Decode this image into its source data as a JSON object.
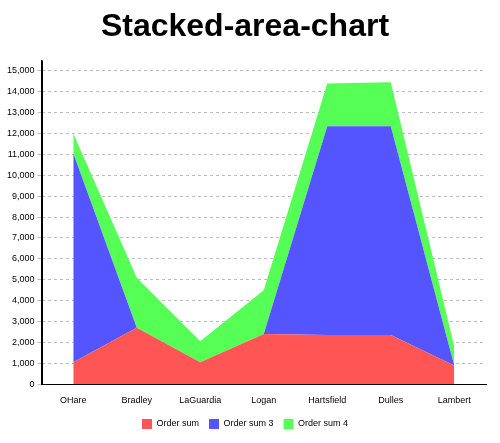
{
  "chart_data": {
    "type": "area",
    "title": "Stacked-area-chart",
    "categories": [
      "OHare",
      "Bradley",
      "LaGuardia",
      "Logan",
      "Hartsfield",
      "Dulles",
      "Lambert"
    ],
    "series": [
      {
        "name": "Order sum",
        "color": "#ff5555",
        "values": [
          1050,
          2700,
          1050,
          2400,
          2350,
          2350,
          900
        ]
      },
      {
        "name": "Order sum 3",
        "color": "#5555ff",
        "values": [
          10000,
          0,
          0,
          0,
          10000,
          10000,
          0
        ]
      },
      {
        "name": "Order sum 4",
        "color": "#55ff55",
        "values": [
          950,
          2400,
          1000,
          2100,
          2050,
          2100,
          900
        ]
      }
    ],
    "stacked": true,
    "ylim": [
      0,
      15500
    ],
    "yticks": [
      0,
      {
        "value": 1000,
        "label": "1,000"
      },
      {
        "value": 2000,
        "label": "2,000"
      },
      {
        "value": 3000,
        "label": "3,000"
      },
      {
        "value": 4000,
        "label": "4,000"
      },
      {
        "value": 5000,
        "label": "5,000"
      },
      {
        "value": 6000,
        "label": "6,000"
      },
      {
        "value": 7000,
        "label": "7,000"
      },
      {
        "value": 8000,
        "label": "8,000"
      },
      {
        "value": 9000,
        "label": "9,000"
      },
      {
        "value": 10000,
        "label": "10,000"
      },
      {
        "value": 11000,
        "label": "11,000"
      },
      {
        "value": 12000,
        "label": "12,000"
      },
      {
        "value": 13000,
        "label": "13,000"
      },
      {
        "value": 14000,
        "label": "14,000"
      },
      {
        "value": 15000,
        "label": "15,000"
      }
    ],
    "grid": true,
    "legend": "bottom"
  }
}
